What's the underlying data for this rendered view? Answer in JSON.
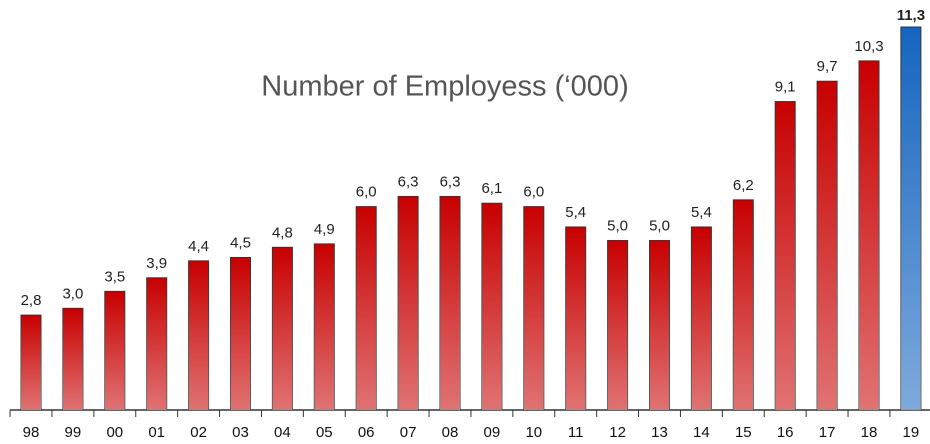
{
  "chart_data": {
    "type": "bar",
    "title": "Number of Employess (‘000)",
    "categories": [
      "98",
      "99",
      "00",
      "01",
      "02",
      "03",
      "04",
      "05",
      "06",
      "07",
      "08",
      "09",
      "10",
      "11",
      "12",
      "13",
      "14",
      "15",
      "16",
      "17",
      "18",
      "19"
    ],
    "values": [
      2.8,
      3.0,
      3.5,
      3.9,
      4.4,
      4.5,
      4.8,
      4.9,
      6.0,
      6.3,
      6.3,
      6.1,
      6.0,
      5.4,
      5.0,
      5.0,
      5.4,
      6.2,
      9.1,
      9.7,
      10.3,
      11.3
    ],
    "value_labels": [
      "2,8",
      "3,0",
      "3,5",
      "3,9",
      "4,4",
      "4,5",
      "4,8",
      "4,9",
      "6,0",
      "6,3",
      "6,3",
      "6,1",
      "6,0",
      "5,4",
      "5,0",
      "5,0",
      "5,4",
      "6,2",
      "9,1",
      "9,7",
      "10,3",
      "11,3"
    ],
    "colors": [
      "#c80000",
      "#c80000",
      "#c80000",
      "#c80000",
      "#c80000",
      "#c80000",
      "#c80000",
      "#c80000",
      "#c80000",
      "#c80000",
      "#c80000",
      "#c80000",
      "#c80000",
      "#c80000",
      "#c80000",
      "#c80000",
      "#c80000",
      "#c80000",
      "#c80000",
      "#c80000",
      "#c80000",
      "#1565c0"
    ],
    "highlight_index": 21
  }
}
